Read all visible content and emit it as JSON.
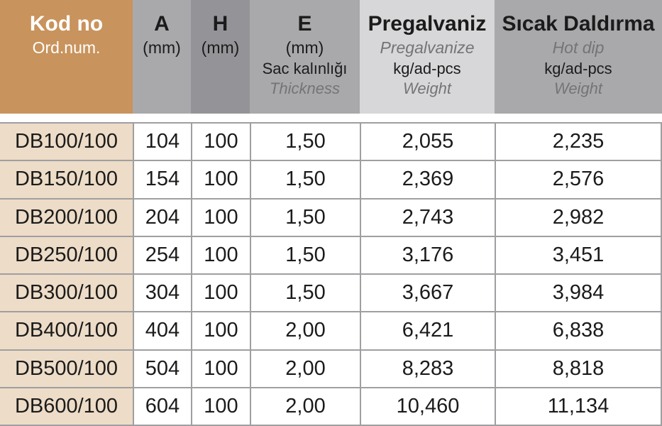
{
  "header": {
    "col_kod": {
      "title": "Kod no",
      "subtitle": "Ord.num."
    },
    "col_a": {
      "title": "A",
      "unit": "(mm)"
    },
    "col_h": {
      "title": "H",
      "unit": "(mm)"
    },
    "col_e": {
      "title": "E",
      "unit": "(mm)",
      "line3": "Sac kalınlığı",
      "line4": "Thickness"
    },
    "col_pre": {
      "title": "Pregalvaniz",
      "subtitle": "Pregalvanize",
      "line3": "kg/ad-pcs",
      "line4": "Weight"
    },
    "col_sicak": {
      "title": "Sıcak Daldırma",
      "subtitle": "Hot dip",
      "line3": "kg/ad-pcs",
      "line4": "Weight"
    }
  },
  "rows": [
    {
      "kod": "DB100/100",
      "a": "104",
      "h": "100",
      "e": "1,50",
      "pre": "2,055",
      "hot": "2,235"
    },
    {
      "kod": "DB150/100",
      "a": "154",
      "h": "100",
      "e": "1,50",
      "pre": "2,369",
      "hot": "2,576"
    },
    {
      "kod": "DB200/100",
      "a": "204",
      "h": "100",
      "e": "1,50",
      "pre": "2,743",
      "hot": "2,982"
    },
    {
      "kod": "DB250/100",
      "a": "254",
      "h": "100",
      "e": "1,50",
      "pre": "3,176",
      "hot": "3,451"
    },
    {
      "kod": "DB300/100",
      "a": "304",
      "h": "100",
      "e": "1,50",
      "pre": "3,667",
      "hot": "3,984"
    },
    {
      "kod": "DB400/100",
      "a": "404",
      "h": "100",
      "e": "2,00",
      "pre": "6,421",
      "hot": "6,838"
    },
    {
      "kod": "DB500/100",
      "a": "504",
      "h": "100",
      "e": "2,00",
      "pre": "8,283",
      "hot": "8,818"
    },
    {
      "kod": "DB600/100",
      "a": "604",
      "h": "100",
      "e": "2,00",
      "pre": "10,460",
      "hot": "11,134"
    }
  ],
  "colors": {
    "header_kod_bg": "#c8935c",
    "header_gray_bg": "#a9a9ac",
    "header_dark_gray_bg": "#949498",
    "header_light_gray_bg": "#d7d7d9",
    "row_kod_bg": "#eddcc7",
    "border": "#9f9fa2",
    "subtitle_text": "#747477",
    "text": "#1b1b1b",
    "header_kod_text": "#ffffff"
  }
}
